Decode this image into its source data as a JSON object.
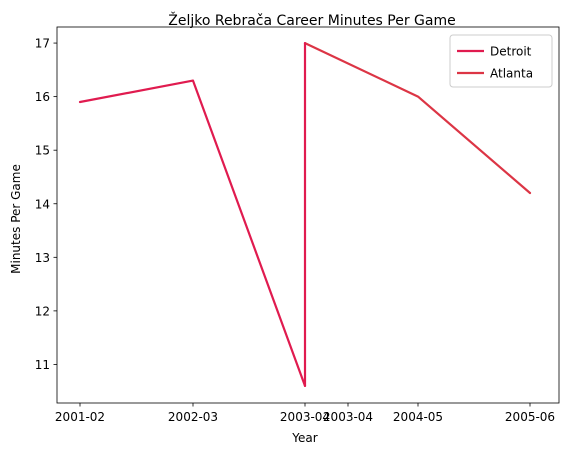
{
  "chart_data": {
    "type": "line",
    "title": "Željko Rebrača Career Minutes Per Game",
    "xlabel": "Year",
    "ylabel": "Minutes Per Game",
    "categories": [
      "2001-02",
      "2002-03",
      "2003-04",
      "2003-04",
      "2004-05",
      "2005-06"
    ],
    "ylim": [
      10.28,
      17.3
    ],
    "yticks": [
      11,
      12,
      13,
      14,
      15,
      16,
      17
    ],
    "grid": false,
    "legend": "top-right",
    "series": [
      {
        "name": "Detroit",
        "color": "#e01b4f",
        "x": [
          0,
          1,
          2
        ],
        "values": [
          15.9,
          16.3,
          10.6
        ]
      },
      {
        "name": "Atlanta",
        "color": "#dc3545",
        "x": [
          2,
          3,
          4
        ],
        "values": [
          17.0,
          16.0,
          14.2
        ]
      }
    ],
    "connector": {
      "color": "#e01b4f",
      "from": [
        2,
        10.6
      ],
      "to": [
        2,
        17.0
      ]
    }
  }
}
